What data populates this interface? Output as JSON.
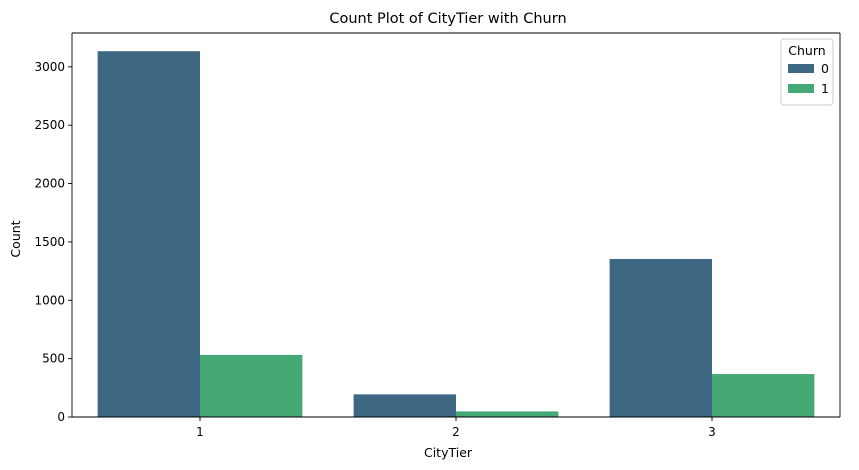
{
  "chart_data": {
    "type": "bar",
    "title": "Count Plot of CityTier with Churn",
    "xlabel": "CityTier",
    "ylabel": "Count",
    "categories": [
      "1",
      "2",
      "3"
    ],
    "series": [
      {
        "name": "0",
        "values": [
          3134,
          194,
          1354
        ],
        "color": "#3e6784"
      },
      {
        "name": "1",
        "values": [
          532,
          48,
          368
        ],
        "color": "#45a976"
      }
    ],
    "ylim": [
      0,
      3290
    ],
    "yticks": [
      0,
      500,
      1000,
      1500,
      2000,
      2500,
      3000
    ],
    "legend": {
      "title": "Churn",
      "placement": "top-right"
    },
    "grid": false
  }
}
